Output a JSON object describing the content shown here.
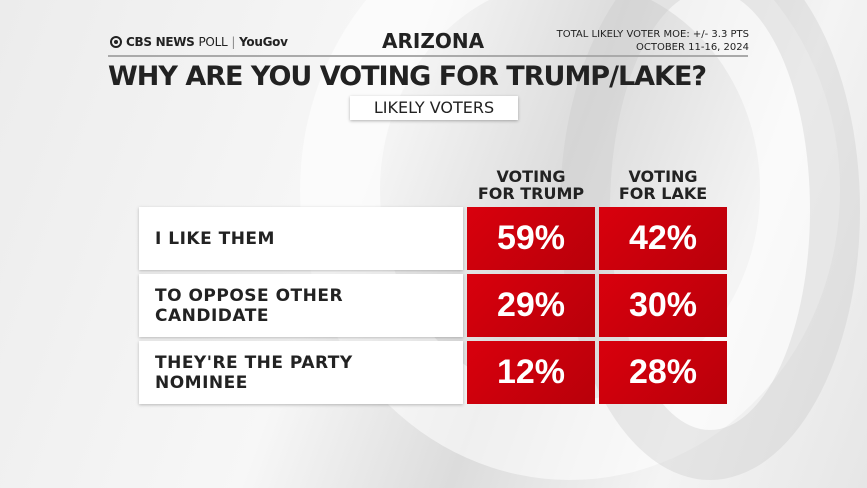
{
  "header": {
    "brand": "CBS NEWS",
    "poll": "POLL",
    "partner": "YouGov",
    "state": "ARIZONA",
    "moe": "TOTAL LIKELY VOTER MOE: +/- 3.3 PTS",
    "dates": "OCTOBER 11-16, 2024"
  },
  "title": "WHY ARE YOU VOTING FOR TRUMP/LAKE?",
  "subtitle": "LIKELY VOTERS",
  "colors": {
    "cell": "#d0000b"
  },
  "chart_data": {
    "type": "table",
    "columns": [
      {
        "line1": "VOTING",
        "line2": "FOR TRUMP"
      },
      {
        "line1": "VOTING",
        "line2": "FOR LAKE"
      }
    ],
    "rows": [
      {
        "label": "I LIKE THEM",
        "values": [
          "59%",
          "42%"
        ]
      },
      {
        "label": "TO OPPOSE OTHER CANDIDATE",
        "values": [
          "29%",
          "30%"
        ]
      },
      {
        "label": "THEY'RE THE PARTY NOMINEE",
        "values": [
          "12%",
          "28%"
        ]
      }
    ]
  }
}
